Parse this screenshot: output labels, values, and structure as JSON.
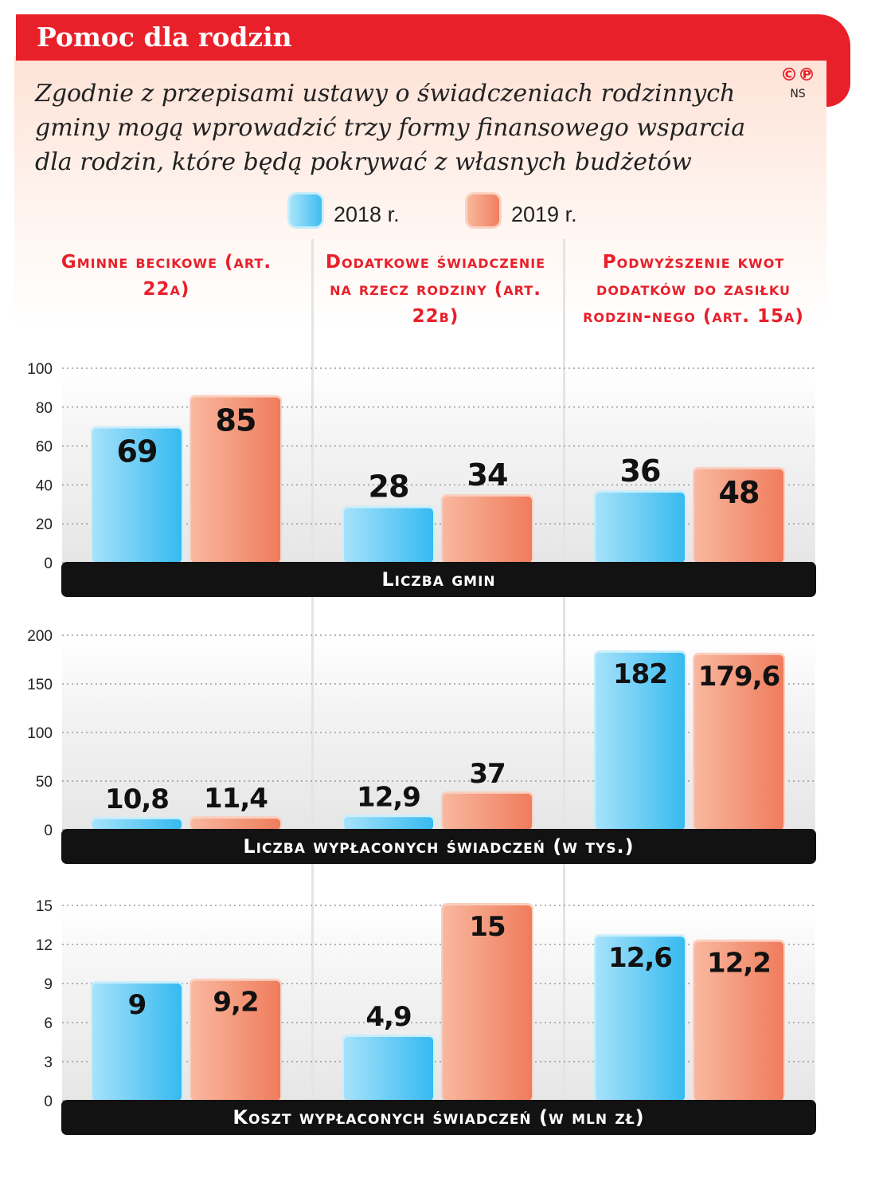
{
  "title": "Pomoc dla rodzin",
  "subtitle": "Zgodnie z przepisami ustawy o świadczeniach rodzinnych gminy mogą wprowadzić trzy formy finansowego wsparcia dla rodzin, które będą pokrywać z własnych budżetów",
  "copyright": {
    "mark": "©℗",
    "initials": "NS"
  },
  "legend": [
    {
      "label": "2018 r.",
      "color": "#5fc8f2"
    },
    {
      "label": "2019 r.",
      "color": "#f59070"
    }
  ],
  "columns": [
    {
      "title": "Gminne becikowe (art. 22a)"
    },
    {
      "title": "Dodatkowe świadczenie na rzecz rodziny (art. 22b)"
    },
    {
      "title": "Podwyższenie kwot dodatków do zasiłku rodzin-nego (art. 15a)"
    }
  ],
  "chart_data": [
    {
      "type": "bar",
      "title": "Liczba gmin",
      "categories": [
        "Gminne becikowe (art. 22a)",
        "Dodatkowe świadczenie na rzecz rodziny (art. 22b)",
        "Podwyższenie kwot dodatków do zasiłku rodzinnego (art. 15a)"
      ],
      "series": [
        {
          "name": "2018 r.",
          "values": [
            69,
            28,
            36
          ],
          "labels": [
            "69",
            "28",
            "36"
          ]
        },
        {
          "name": "2019 r.",
          "values": [
            85,
            34,
            48
          ],
          "labels": [
            "85",
            "34",
            "48"
          ]
        }
      ],
      "ylim": [
        0,
        100
      ],
      "yticks": [
        "0",
        "20",
        "40",
        "60",
        "80",
        "100"
      ],
      "grid": true
    },
    {
      "type": "bar",
      "title": "Liczba wypłaconych świadczeń (w tys.)",
      "categories": [
        "Gminne becikowe (art. 22a)",
        "Dodatkowe świadczenie na rzecz rodziny (art. 22b)",
        "Podwyższenie kwot dodatków do zasiłku rodzinnego (art. 15a)"
      ],
      "series": [
        {
          "name": "2018 r.",
          "values": [
            10.8,
            12.9,
            182
          ],
          "labels": [
            "10,8",
            "12,9",
            "182"
          ]
        },
        {
          "name": "2019 r.",
          "values": [
            11.4,
            37,
            179.6
          ],
          "labels": [
            "11,4",
            "37",
            "179,6"
          ]
        }
      ],
      "ylim": [
        0,
        200
      ],
      "yticks": [
        "0",
        "50",
        "100",
        "150",
        "200"
      ],
      "grid": true
    },
    {
      "type": "bar",
      "title": "Koszt wypłaconych świadczeń (w mln zł)",
      "categories": [
        "Gminne becikowe (art. 22a)",
        "Dodatkowe świadczenie na rzecz rodziny (art. 22b)",
        "Podwyższenie kwot dodatków do zasiłku rodzinnego (art. 15a)"
      ],
      "series": [
        {
          "name": "2018 r.",
          "values": [
            9,
            4.9,
            12.6
          ],
          "labels": [
            "9",
            "4,9",
            "12,6"
          ]
        },
        {
          "name": "2019 r.",
          "values": [
            9.2,
            15,
            12.2
          ],
          "labels": [
            "9,2",
            "15",
            "12,2"
          ]
        }
      ],
      "ylim": [
        0,
        15
      ],
      "yticks": [
        "0",
        "3",
        "6",
        "9",
        "12",
        "15"
      ],
      "grid": true
    }
  ]
}
